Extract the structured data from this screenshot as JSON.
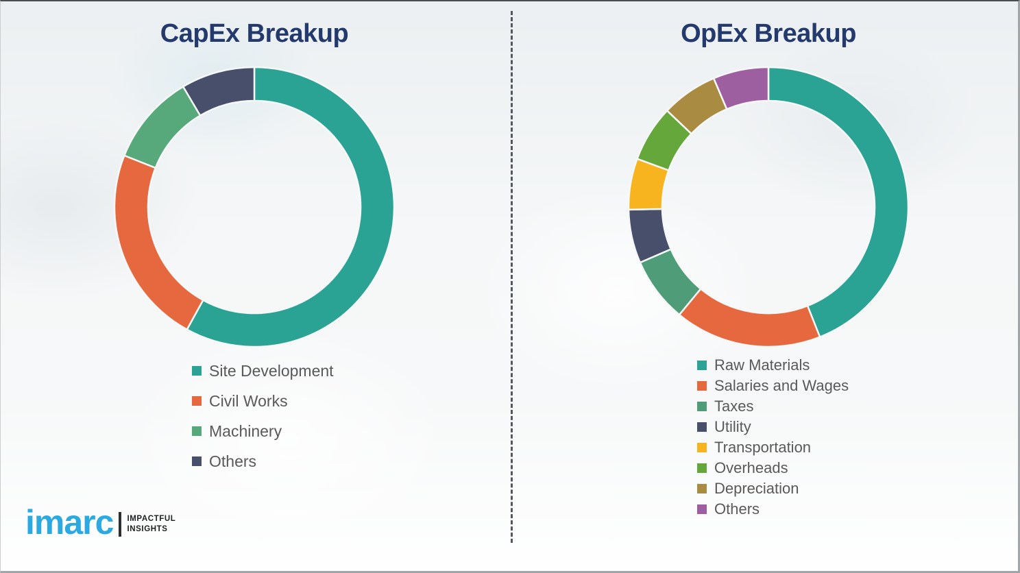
{
  "title_color": "#243a6d",
  "legend_text_color": "#595959",
  "chart_data": [
    {
      "type": "pie",
      "subtype": "donut",
      "title": "CapEx Breakup",
      "categories": [
        "Site Development",
        "Civil Works",
        "Machinery",
        "Others"
      ],
      "values": [
        58,
        23,
        10.5,
        8.5
      ],
      "colors": [
        "#2aa294",
        "#e6683f",
        "#57a87b",
        "#474f6b"
      ],
      "start_angle_deg": 0,
      "direction": "clockwise",
      "inner_radius_ratio": 0.76,
      "legend_position": "below-left",
      "data_labels": "none"
    },
    {
      "type": "pie",
      "subtype": "donut",
      "title": "OpEx Breakup",
      "categories": [
        "Raw Materials",
        "Salaries and Wages",
        "Taxes",
        "Utility",
        "Transportation",
        "Overheads",
        "Depreciation",
        "Others"
      ],
      "values": [
        44,
        17,
        7.5,
        6.2,
        5.9,
        6.5,
        6.5,
        6.4
      ],
      "colors": [
        "#2aa294",
        "#e6683f",
        "#4f9d78",
        "#474f6b",
        "#f7b41e",
        "#66a73c",
        "#a98b42",
        "#9e5fa0"
      ],
      "start_angle_deg": 0,
      "direction": "clockwise",
      "inner_radius_ratio": 0.76,
      "legend_position": "below-left",
      "data_labels": "none"
    }
  ],
  "logo": {
    "brand": "imarc",
    "brand_color": "#2BA9E0",
    "tagline_line1": "IMPACTFUL",
    "tagline_line2": "INSIGHTS"
  }
}
